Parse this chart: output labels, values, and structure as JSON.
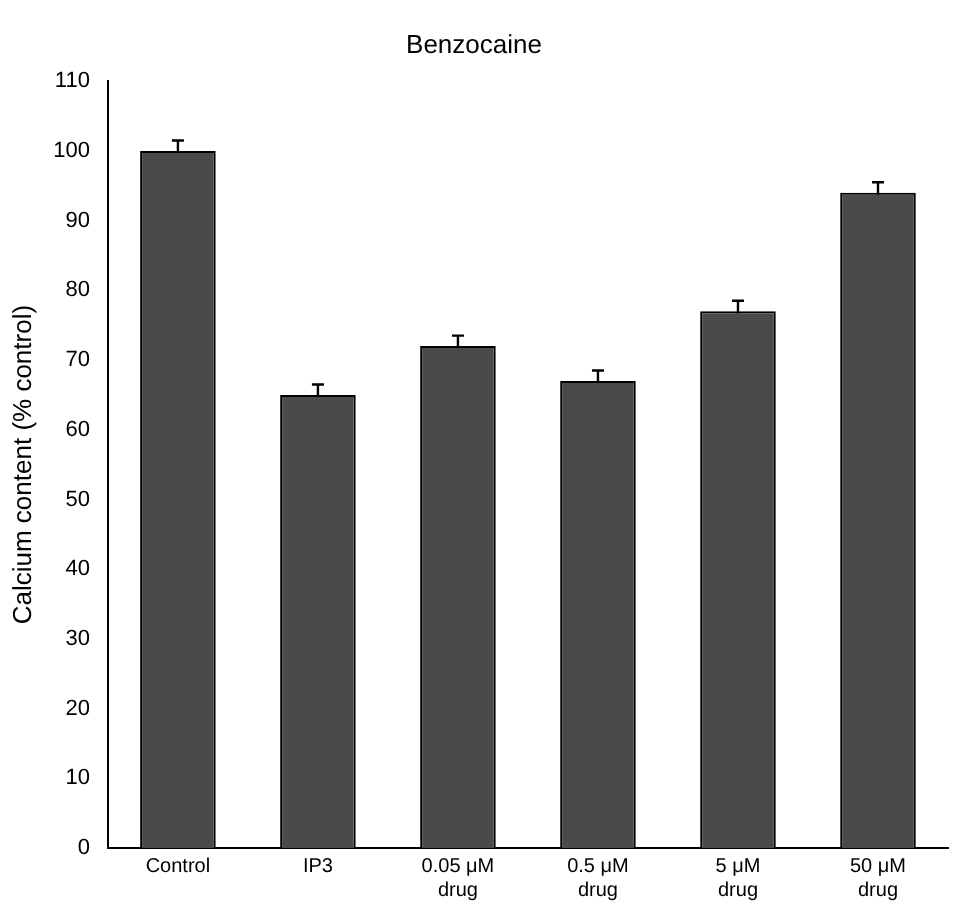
{
  "chart_data": {
    "type": "bar",
    "title": "Benzocaine",
    "ylabel": "Calcium content (% control)",
    "categories": [
      "Control",
      "IP3",
      "0.05 μM drug",
      "0.5 μM drug",
      "5 μM drug",
      "50 μM drug"
    ],
    "values": [
      100,
      65,
      72,
      67,
      77,
      94
    ],
    "errors": [
      1.5,
      1.5,
      1.5,
      1.5,
      1.5,
      1.5
    ],
    "color": "#4a4a4a",
    "ylim": [
      0,
      110
    ],
    "yticks": [
      0,
      10,
      20,
      30,
      40,
      50,
      60,
      70,
      80,
      90,
      100,
      110
    ],
    "grid": false,
    "legend": false
  }
}
